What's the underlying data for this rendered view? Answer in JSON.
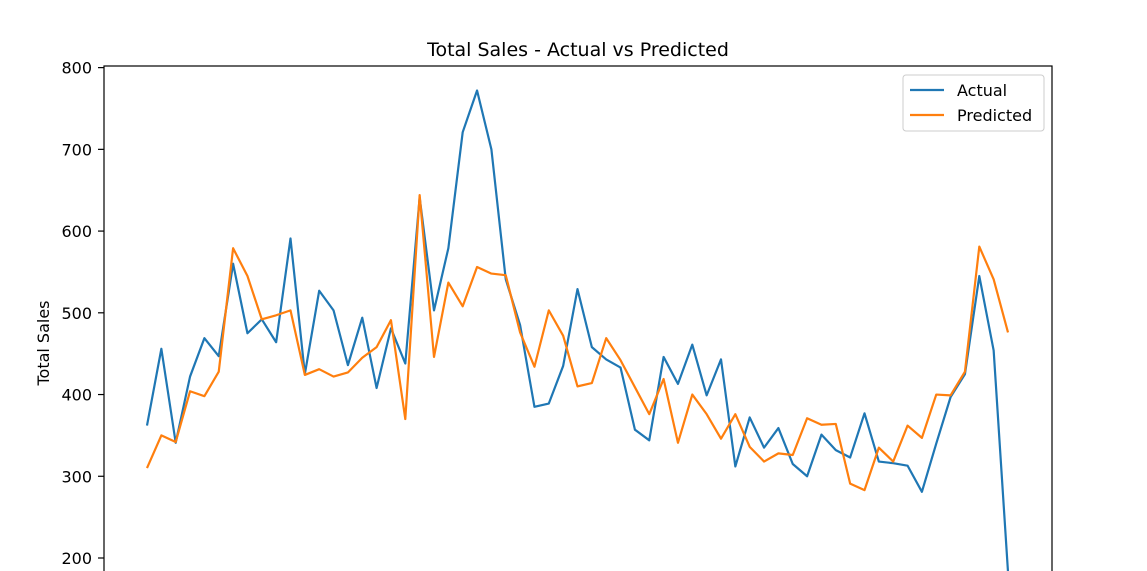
{
  "chart_data": {
    "type": "line",
    "title": "Total Sales - Actual vs Predicted",
    "xlabel": "",
    "ylabel": "Total Sales",
    "ylim_visible": [
      180,
      810
    ],
    "yticks": [
      200,
      300,
      400,
      500,
      600,
      700,
      800
    ],
    "legend_position": "top-right",
    "grid": false,
    "series": [
      {
        "name": "Actual",
        "color": "#1f77b4",
        "values": [
          362,
          456,
          341,
          422,
          469,
          447,
          560,
          475,
          492,
          464,
          591,
          425,
          527,
          503,
          436,
          494,
          408,
          481,
          438,
          641,
          503,
          579,
          721,
          772,
          700,
          541,
          485,
          385,
          389,
          435,
          529,
          458,
          443,
          433,
          357,
          344,
          446,
          413,
          461,
          399,
          443,
          312,
          372,
          335,
          359,
          315,
          300,
          351,
          332,
          323,
          377,
          318,
          316,
          313,
          281,
          340,
          397,
          425,
          545,
          454,
          183
        ]
      },
      {
        "name": "Predicted",
        "color": "#ff7f0e",
        "values": [
          310,
          350,
          342,
          404,
          398,
          428,
          579,
          545,
          492,
          497,
          503,
          424,
          431,
          422,
          427,
          445,
          458,
          491,
          370,
          644,
          446,
          537,
          508,
          556,
          548,
          546,
          476,
          434,
          503,
          472,
          410,
          414,
          469,
          442,
          409,
          376,
          419,
          341,
          400,
          376,
          346,
          376,
          336,
          318,
          328,
          326,
          371,
          363,
          364,
          291,
          283,
          335,
          318,
          362,
          347,
          400,
          399,
          428,
          581,
          541,
          476
        ]
      }
    ]
  }
}
